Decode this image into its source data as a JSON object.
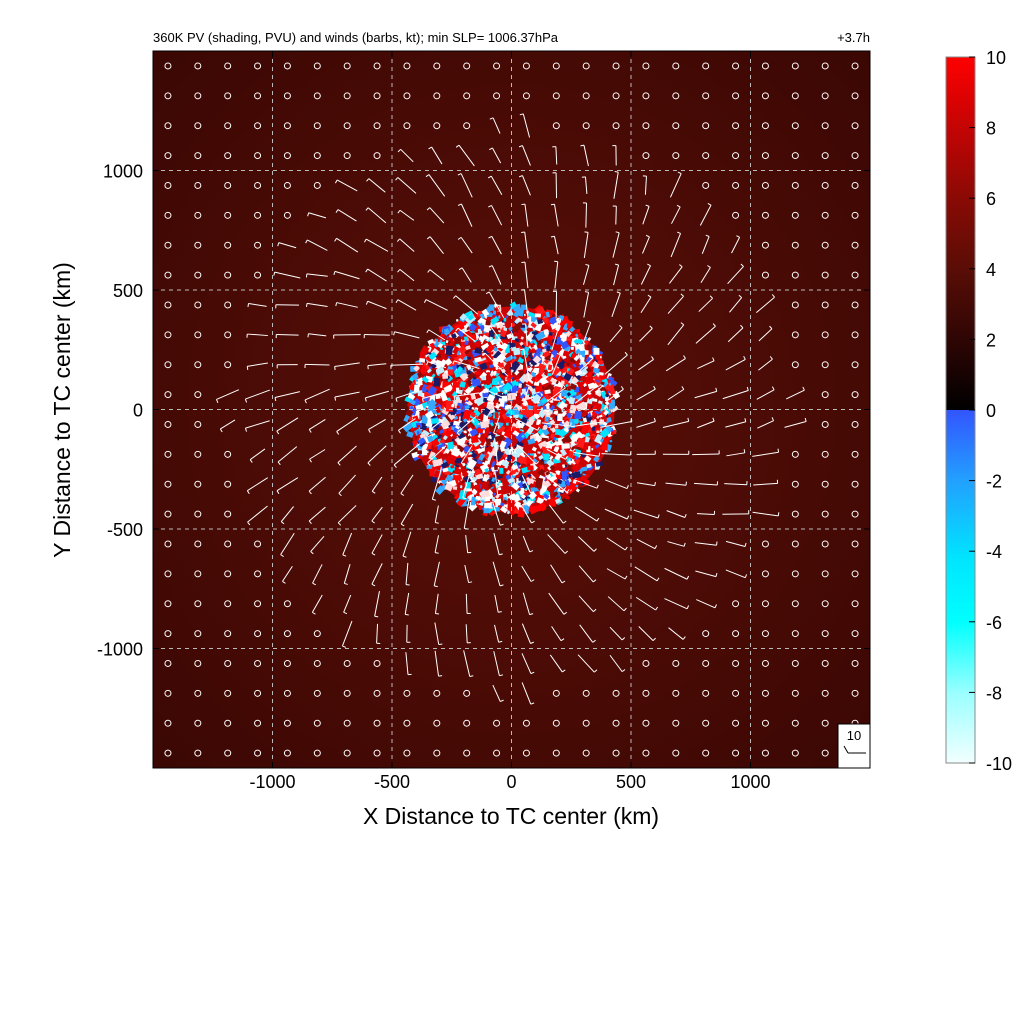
{
  "chart_data": {
    "type": "heatmap",
    "title": "360K PV (shading, PVU) and winds (barbs, kt); min SLP= 1006.37hPa",
    "time_label": "+3.7h",
    "xlabel": "X Distance to TC center (km)",
    "ylabel": "Y Distance to TC center (km)",
    "xlim": [
      -1500,
      1500
    ],
    "ylim": [
      -1500,
      1500
    ],
    "xticks": [
      -1000,
      -500,
      0,
      500,
      1000
    ],
    "xtick_labels": [
      "-1000",
      "-500",
      "0",
      "500",
      "1000"
    ],
    "yticks": [
      1000,
      500,
      0,
      -500,
      -1000
    ],
    "ytick_labels": [
      "1000",
      "500",
      "0",
      "-500",
      "-1000"
    ],
    "grid": true,
    "grid_spacing_km": 500,
    "colorbar": {
      "label": "",
      "range": [
        -10,
        10
      ],
      "ticks": [
        10,
        8,
        6,
        4,
        2,
        0,
        -2,
        -4,
        -6,
        -8,
        -10
      ],
      "tick_labels": [
        "10",
        "8",
        "6",
        "4",
        "2",
        "0",
        "-2",
        "-4",
        "-6",
        "-8",
        "-10"
      ],
      "colors": {
        "10": "#ff0000",
        "6": "#a00000",
        "4": "#5a0d06",
        "2": "#240404",
        "0": "#000000",
        "neg0": "#3355ff",
        "-4": "#00e5ff",
        "-10": "#f2ffff"
      }
    },
    "background_pv_pvu": 4.3,
    "core": {
      "center_km": [
        0,
        0
      ],
      "radius_km": 440,
      "description": "noisy PV anomaly values ranging -10 to 10 PVU"
    },
    "barb_grid_spacing_km": 125,
    "barb_calm_radius_km": 1200,
    "reference_barb": {
      "label": "10",
      "speed_kt": 10
    },
    "min_slp_hPa": 1006.37
  }
}
